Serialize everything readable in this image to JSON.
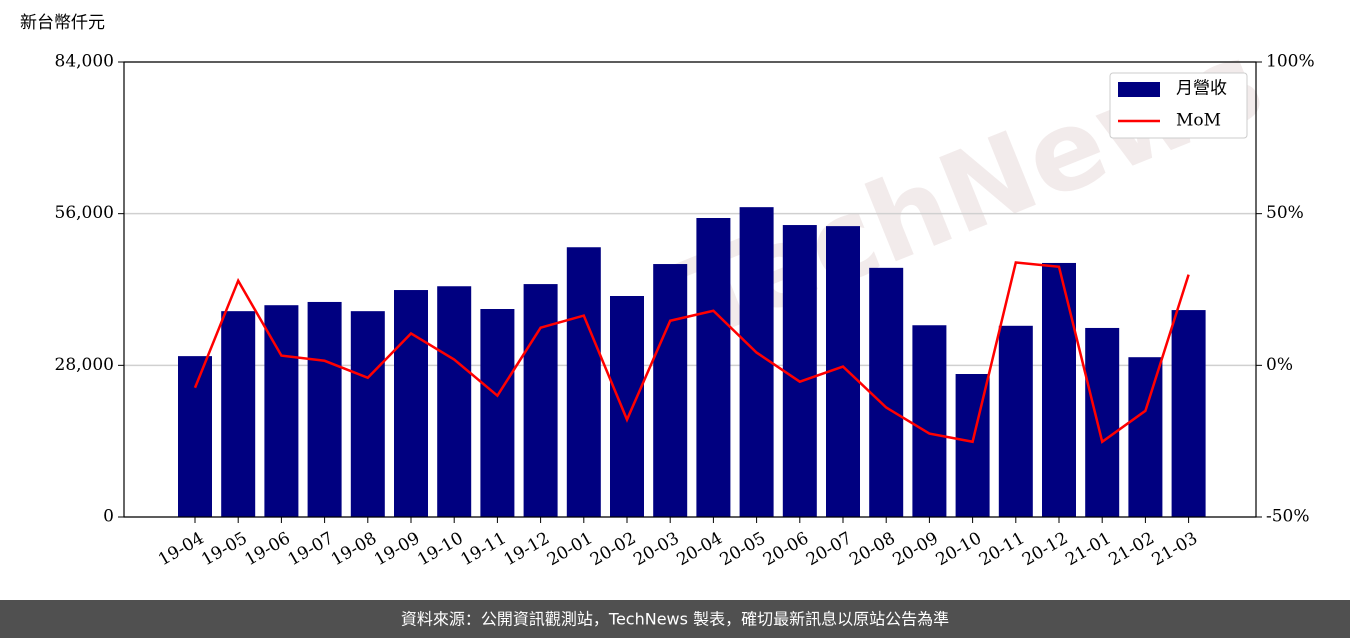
{
  "chart_data": {
    "type": "bar_line",
    "y_axis_label": "新台幣仟元",
    "watermark": "TechNews",
    "footer": "資料來源：公開資訊觀測站，TechNews 製表，確切最新訊息以原站公告為準",
    "categories": [
      "19-04",
      "19-05",
      "19-06",
      "19-07",
      "19-08",
      "19-09",
      "19-10",
      "19-11",
      "19-12",
      "20-01",
      "20-02",
      "20-03",
      "20-04",
      "20-05",
      "20-06",
      "20-07",
      "20-08",
      "20-09",
      "20-10",
      "20-11",
      "20-12",
      "21-01",
      "21-02",
      "21-03"
    ],
    "series": [
      {
        "name": "月營收",
        "color": "#000080",
        "type": "bar",
        "values": [
          29700,
          38000,
          39100,
          39700,
          38000,
          41900,
          42600,
          38400,
          43000,
          49800,
          40800,
          46700,
          55200,
          57200,
          53900,
          53700,
          46000,
          35400,
          26400,
          35300,
          46900,
          34900,
          29500,
          38200
        ]
      },
      {
        "name": "MoM",
        "color": "#ff0000",
        "type": "line",
        "axis": "y2",
        "values": [
          -7.4,
          27.9,
          3.2,
          1.5,
          -4.1,
          10.5,
          1.9,
          -10,
          12.4,
          16.4,
          -17.9,
          14.7,
          18,
          4.2,
          -5.4,
          -0.4,
          -13.9,
          -22.5,
          -25.2,
          33.9,
          32.5,
          -25.2,
          -15,
          29.9
        ]
      }
    ],
    "ylim": [
      0,
      84000
    ],
    "yticks": [
      0,
      {
        "value": 28000,
        "label": "28,000"
      },
      {
        "value": 56000,
        "label": "56,000"
      },
      {
        "value": 84000,
        "label": "84,000"
      }
    ],
    "y2lim": [
      -50,
      100
    ],
    "y2ticks": [
      {
        "value": -50,
        "label": "-50%"
      },
      {
        "value": 0,
        "label": "0%"
      },
      {
        "value": 50,
        "label": "50%"
      },
      {
        "value": 100,
        "label": "100%"
      }
    ],
    "grid": true,
    "legend": "upper right"
  }
}
